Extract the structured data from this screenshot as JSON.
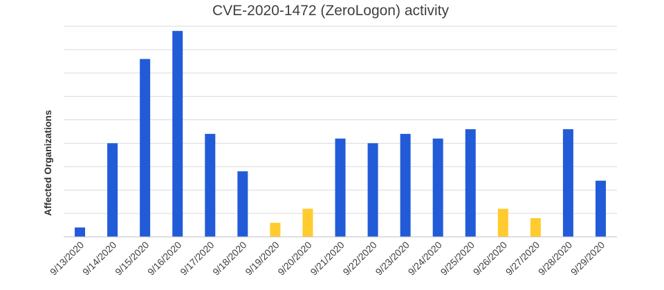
{
  "chart_data": {
    "type": "bar",
    "title": "CVE-2020-1472 (ZeroLogon) activity",
    "xlabel": "",
    "ylabel": "Affected Organizations",
    "ylim": [
      0,
      45
    ],
    "grid": true,
    "legend": "none",
    "categories": [
      "9/13/2020",
      "9/14/2020",
      "9/15/2020",
      "9/16/2020",
      "9/17/2020",
      "9/18/2020",
      "9/19/2020",
      "9/20/2020",
      "9/21/2020",
      "9/22/2020",
      "9/23/2020",
      "9/24/2020",
      "9/25/2020",
      "9/26/2020",
      "9/27/2020",
      "9/28/2020",
      "9/29/2020"
    ],
    "values": [
      2,
      20,
      38,
      44,
      22,
      14,
      3,
      6,
      21,
      20,
      22,
      21,
      23,
      6,
      4,
      23,
      12
    ],
    "bar_colors": [
      "#225BD8",
      "#225BD8",
      "#225BD8",
      "#225BD8",
      "#225BD8",
      "#225BD8",
      "#FFCB2F",
      "#FFCB2F",
      "#225BD8",
      "#225BD8",
      "#225BD8",
      "#225BD8",
      "#225BD8",
      "#FFCB2F",
      "#FFCB2F",
      "#225BD8",
      "#225BD8"
    ]
  }
}
